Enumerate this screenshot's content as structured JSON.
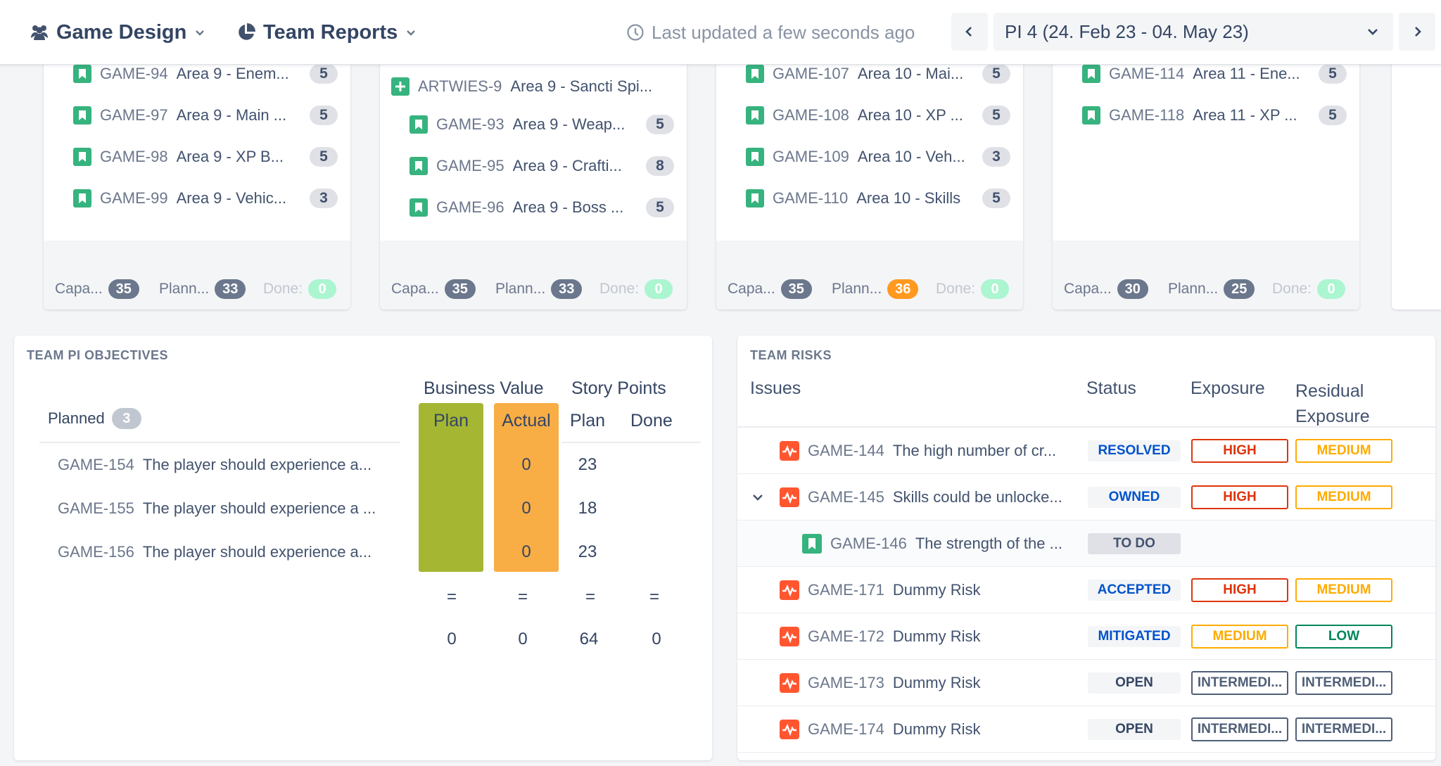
{
  "topbar": {
    "project_label": "Game Design",
    "reports_label": "Team Reports",
    "updated_text": "Last updated a few seconds ago",
    "pi_label": "PI 4 (24. Feb 23 - 04. May 23)"
  },
  "sprints": [
    {
      "issues": [
        {
          "key": "GAME-94",
          "summary": "Area 9 - Enem...",
          "points": "5"
        },
        {
          "key": "GAME-97",
          "summary": "Area 9 - Main ...",
          "points": "5"
        },
        {
          "key": "GAME-98",
          "summary": "Area 9 - XP B...",
          "points": "5"
        },
        {
          "key": "GAME-99",
          "summary": "Area 9 - Vehic...",
          "points": "3"
        }
      ],
      "capacity_label": "Capa...",
      "capacity": "35",
      "planned_label": "Plann...",
      "planned": "33",
      "done_label": "Done:",
      "done": "0"
    },
    {
      "epic": {
        "key": "ARTWIES-9",
        "summary": "Area 9 - Sancti Spi..."
      },
      "issues": [
        {
          "key": "GAME-93",
          "summary": "Area 9 - Weap...",
          "points": "5"
        },
        {
          "key": "GAME-95",
          "summary": "Area 9 - Crafti...",
          "points": "8"
        },
        {
          "key": "GAME-96",
          "summary": "Area 9 - Boss ...",
          "points": "5"
        }
      ],
      "capacity_label": "Capa...",
      "capacity": "35",
      "planned_label": "Plann...",
      "planned": "33",
      "done_label": "Done:",
      "done": "0"
    },
    {
      "issues": [
        {
          "key": "GAME-107",
          "summary": "Area 10 - Mai...",
          "points": "5"
        },
        {
          "key": "GAME-108",
          "summary": "Area 10 - XP ...",
          "points": "5"
        },
        {
          "key": "GAME-109",
          "summary": "Area 10 - Veh...",
          "points": "3"
        },
        {
          "key": "GAME-110",
          "summary": "Area 10 - Skills",
          "points": "5"
        }
      ],
      "capacity_label": "Capa...",
      "capacity": "35",
      "planned_label": "Plann...",
      "planned": "36",
      "done_label": "Done:",
      "done": "0"
    },
    {
      "issues": [
        {
          "key": "GAME-114",
          "summary": "Area 11 - Ene...",
          "points": "5"
        },
        {
          "key": "GAME-118",
          "summary": "Area 11 - XP ...",
          "points": "5"
        }
      ],
      "capacity_label": "Capa...",
      "capacity": "30",
      "planned_label": "Plann...",
      "planned": "25",
      "done_label": "Done:",
      "done": "0"
    }
  ],
  "objectives": {
    "title": "TEAM PI OBJECTIVES",
    "business_value": "Business Value",
    "story_points": "Story Points",
    "col_plan": "Plan",
    "col_actual": "Actual",
    "col_sp_plan": "Plan",
    "col_sp_done": "Done",
    "planned_label": "Planned",
    "planned_count": "3",
    "rows": [
      {
        "key": "GAME-154",
        "summary": "The player should experience a...",
        "actual": "0",
        "sp_plan": "23"
      },
      {
        "key": "GAME-155",
        "summary": "The player should experience a ...",
        "actual": "0",
        "sp_plan": "18"
      },
      {
        "key": "GAME-156",
        "summary": "The player should experience a...",
        "actual": "0",
        "sp_plan": "23"
      }
    ],
    "eq": "=",
    "totals": {
      "plan": "0",
      "actual": "0",
      "sp_plan": "64",
      "sp_done": "0"
    }
  },
  "risks": {
    "title": "TEAM RISKS",
    "col_issues": "Issues",
    "col_status": "Status",
    "col_exposure": "Exposure",
    "col_residual": "Residual Exposure",
    "rows": [
      {
        "key": "GAME-144",
        "summary": "The high number of cr...",
        "status": "RESOLVED",
        "exposure": "HIGH",
        "residual": "MEDIUM"
      },
      {
        "key": "GAME-145",
        "summary": "Skills could be unlocke...",
        "status": "OWNED",
        "exposure": "HIGH",
        "residual": "MEDIUM"
      },
      {
        "key": "GAME-146",
        "summary": "The strength of the ...",
        "status": "TO DO"
      },
      {
        "key": "GAME-171",
        "summary": "Dummy Risk",
        "status": "ACCEPTED",
        "exposure": "HIGH",
        "residual": "MEDIUM"
      },
      {
        "key": "GAME-172",
        "summary": "Dummy Risk",
        "status": "MITIGATED",
        "exposure": "MEDIUM",
        "residual": "LOW"
      },
      {
        "key": "GAME-173",
        "summary": "Dummy Risk",
        "status": "OPEN",
        "exposure": "INTERMEDI...",
        "residual": "INTERMEDI..."
      },
      {
        "key": "GAME-174",
        "summary": "Dummy Risk",
        "status": "OPEN",
        "exposure": "INTERMEDI...",
        "residual": "INTERMEDI..."
      }
    ]
  },
  "colors": {
    "story_green": "#36b37e",
    "risk_red": "#ff5630",
    "bv_plan": "#a5b633",
    "bv_actual": "#f9ad45",
    "status_blue": "#0052cc",
    "exposure_high": "#de350b",
    "exposure_medium": "#ffab00",
    "exposure_low": "#00875a",
    "exposure_intermediate": "#505f79"
  }
}
